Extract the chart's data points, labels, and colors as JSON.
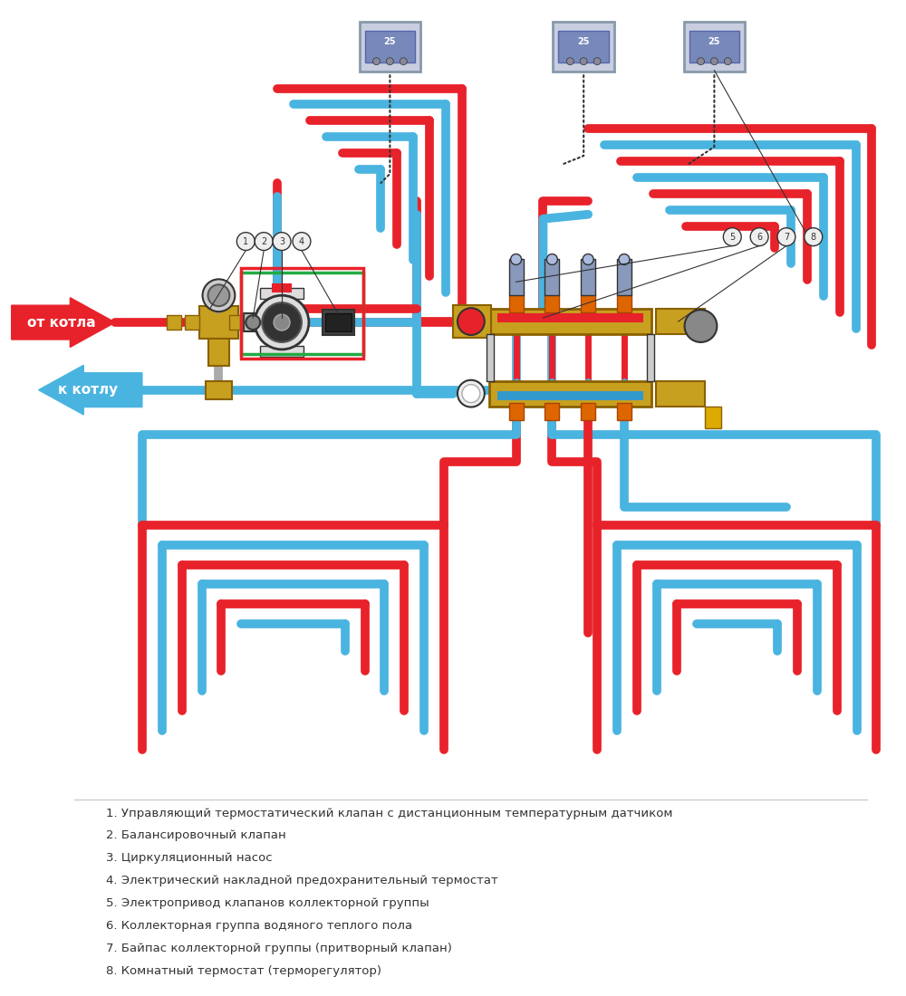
{
  "bg_color": "#ffffff",
  "red_color": "#e8222a",
  "blue_color": "#4ab4e0",
  "gold_color": "#c8a020",
  "gray_color": "#888888",
  "green_color": "#22aa44",
  "dark_color": "#333333",
  "legend_items": [
    "1. Управляющий термостатический клапан с дистанционным температурным датчиком",
    "2. Балансировочный клапан",
    "3. Циркуляционный насос",
    "4. Электрический накладной предохранительный термостат",
    "5. Электропривод клапанов коллекторной группы",
    "6. Коллекторная группа водяного теплого пола",
    "7. Байпас коллекторной группы (притворный клапан)",
    "8. Комнатный термостат (терморегулятор)"
  ],
  "from_boiler_text": "от котла",
  "to_boiler_text": "к котлу"
}
